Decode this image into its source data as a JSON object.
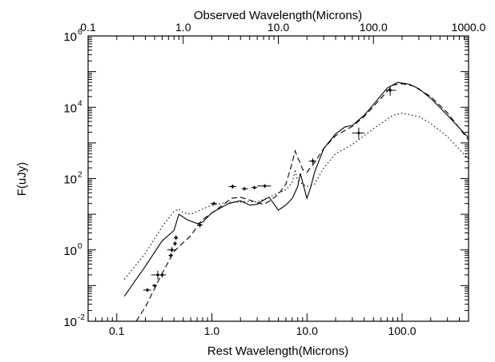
{
  "chart_data": {
    "type": "scatter",
    "title": "",
    "xlabel": "Rest Wavelength(Microns)",
    "x2label": "Observed Wavelength(Microns)",
    "ylabel": "F(uJy)",
    "xscale": "log",
    "yscale": "log",
    "xlim": [
      0.05,
      500
    ],
    "ylim": [
      0.01,
      1000000
    ],
    "x2lim": [
      0.1,
      1000
    ],
    "grid": false,
    "x_ticks": [
      {
        "value": 0.1,
        "label": "0.1"
      },
      {
        "value": 1,
        "label": "1.0"
      },
      {
        "value": 10,
        "label": "10.0"
      },
      {
        "value": 100,
        "label": "100.0"
      }
    ],
    "x2_ticks": [
      {
        "value": 0.1,
        "label": "0.1"
      },
      {
        "value": 1,
        "label": "1.0"
      },
      {
        "value": 10,
        "label": "10.0"
      },
      {
        "value": 100,
        "label": "100.0"
      },
      {
        "value": 1000,
        "label": "1000.0"
      }
    ],
    "y_ticks": [
      {
        "value": 0.01,
        "base": "10",
        "exp": "-2"
      },
      {
        "value": 1,
        "base": "10",
        "exp": "0"
      },
      {
        "value": 100,
        "base": "10",
        "exp": "2"
      },
      {
        "value": 10000,
        "base": "10",
        "exp": "4"
      },
      {
        "value": 1000000,
        "base": "10",
        "exp": "6"
      }
    ],
    "points": [
      {
        "x": 0.21,
        "y": 0.075,
        "xerr": [
          0.19,
          0.23
        ],
        "yerr": [
          0.066,
          0.085
        ]
      },
      {
        "x": 0.25,
        "y": 0.1,
        "xerr": [
          0.235,
          0.265
        ],
        "yerr": [
          0.09,
          0.11
        ]
      },
      {
        "x": 0.27,
        "y": 0.2,
        "xerr": [
          0.23,
          0.31
        ],
        "yerr": [
          0.15,
          0.26
        ]
      },
      {
        "x": 0.3,
        "y": 0.2,
        "xerr": [
          0.28,
          0.33
        ],
        "yerr": [
          0.17,
          0.23
        ]
      },
      {
        "x": 0.37,
        "y": 0.7,
        "xerr": [
          0.35,
          0.39
        ],
        "yerr": [
          0.6,
          0.8
        ]
      },
      {
        "x": 0.38,
        "y": 1.0,
        "xerr": [
          0.34,
          0.42
        ],
        "yerr": [
          0.85,
          1.2
        ]
      },
      {
        "x": 0.41,
        "y": 1.5,
        "xerr": [
          0.39,
          0.43
        ],
        "yerr": [
          1.3,
          1.75
        ]
      },
      {
        "x": 0.42,
        "y": 2.2,
        "xerr": [
          0.4,
          0.44
        ],
        "yerr": [
          1.9,
          2.6
        ]
      },
      {
        "x": 0.75,
        "y": 5.0,
        "xerr": [
          0.7,
          0.8
        ],
        "yerr": [
          4.2,
          5.9
        ]
      },
      {
        "x": 1.05,
        "y": 20,
        "xerr": [
          0.97,
          1.13
        ],
        "yerr": [
          17.5,
          22.5
        ]
      },
      {
        "x": 1.65,
        "y": 60,
        "xerr": [
          1.5,
          1.8
        ],
        "yerr": [
          52,
          68
        ]
      },
      {
        "x": 2.2,
        "y": 52,
        "xerr": [
          2.05,
          2.4
        ],
        "yerr": [
          46,
          58
        ]
      },
      {
        "x": 2.8,
        "y": 56,
        "xerr": [
          2.6,
          3.0
        ],
        "yerr": [
          50,
          62
        ]
      },
      {
        "x": 3.6,
        "y": 62,
        "xerr": [
          3.0,
          4.2
        ],
        "yerr": [
          55,
          69
        ]
      },
      {
        "x": 11.5,
        "y": 310,
        "xerr": [
          10.5,
          12.5
        ],
        "yerr": [
          260,
          370
        ]
      },
      {
        "x": 35,
        "y": 1900,
        "xerr": [
          30,
          40
        ],
        "yerr": [
          1300,
          2700
        ]
      },
      {
        "x": 75,
        "y": 30000,
        "xerr": [
          66,
          86
        ],
        "yerr": [
          21000,
          40000
        ]
      }
    ],
    "series": [
      {
        "style": "solid",
        "points": [
          [
            0.12,
            0.05
          ],
          [
            0.2,
            0.35
          ],
          [
            0.3,
            1.8
          ],
          [
            0.4,
            3.5
          ],
          [
            0.45,
            10
          ],
          [
            0.55,
            7
          ],
          [
            0.7,
            5.5
          ],
          [
            0.8,
            6
          ],
          [
            1.0,
            11
          ],
          [
            1.5,
            20
          ],
          [
            2.0,
            24
          ],
          [
            2.5,
            18
          ],
          [
            3.0,
            19
          ],
          [
            3.5,
            25
          ],
          [
            4.0,
            30
          ],
          [
            5.0,
            13
          ],
          [
            6.0,
            18
          ],
          [
            7.0,
            28
          ],
          [
            8.0,
            60
          ],
          [
            8.5,
            140
          ],
          [
            9.0,
            80
          ],
          [
            10.0,
            28
          ],
          [
            11.0,
            60
          ],
          [
            12.0,
            150
          ],
          [
            15.0,
            700
          ],
          [
            20.0,
            1800
          ],
          [
            25.0,
            2800
          ],
          [
            30.0,
            3100
          ],
          [
            40.0,
            6000
          ],
          [
            50.0,
            12000
          ],
          [
            70.0,
            35000
          ],
          [
            90.0,
            50000
          ],
          [
            120.0,
            44000
          ],
          [
            150.0,
            33000
          ],
          [
            200.0,
            18000
          ],
          [
            300.0,
            6000
          ],
          [
            500.0,
            1400
          ]
        ]
      },
      {
        "style": "dashed",
        "points": [
          [
            0.16,
            0.01
          ],
          [
            0.2,
            0.025
          ],
          [
            0.3,
            0.22
          ],
          [
            0.4,
            0.9
          ],
          [
            0.5,
            1.6
          ],
          [
            0.6,
            2.5
          ],
          [
            0.7,
            4.5
          ],
          [
            0.8,
            7
          ],
          [
            1.0,
            11
          ],
          [
            1.3,
            18
          ],
          [
            1.6,
            28
          ],
          [
            2.0,
            30
          ],
          [
            2.5,
            25
          ],
          [
            3.0,
            21
          ],
          [
            3.5,
            19
          ],
          [
            4.0,
            23
          ],
          [
            5.0,
            36
          ],
          [
            6.0,
            70
          ],
          [
            7.0,
            280
          ],
          [
            7.5,
            600
          ],
          [
            8.0,
            380
          ],
          [
            8.5,
            280
          ],
          [
            9.0,
            180
          ],
          [
            10.0,
            150
          ],
          [
            12.0,
            280
          ],
          [
            15.0,
            700
          ],
          [
            20.0,
            1600
          ],
          [
            30.0,
            2900
          ],
          [
            40.0,
            5500
          ],
          [
            60.0,
            18000
          ],
          [
            80.0,
            42000
          ],
          [
            100.0,
            46000
          ],
          [
            130.0,
            40000
          ],
          [
            200.0,
            20000
          ],
          [
            300.0,
            7000
          ],
          [
            500.0,
            1200
          ]
        ]
      },
      {
        "style": "dotted",
        "points": [
          [
            0.12,
            0.15
          ],
          [
            0.2,
            0.8
          ],
          [
            0.3,
            4.5
          ],
          [
            0.4,
            12
          ],
          [
            0.45,
            14
          ],
          [
            0.5,
            11
          ],
          [
            0.6,
            10
          ],
          [
            0.7,
            12
          ],
          [
            1.0,
            18
          ],
          [
            1.5,
            22
          ],
          [
            2.0,
            22
          ],
          [
            2.5,
            23
          ],
          [
            3.0,
            22
          ],
          [
            4.0,
            30
          ],
          [
            5.0,
            40
          ],
          [
            6.0,
            48
          ],
          [
            6.5,
            60
          ],
          [
            7.0,
            80
          ],
          [
            7.5,
            160
          ],
          [
            8.0,
            90
          ],
          [
            9.0,
            70
          ],
          [
            10.0,
            60
          ],
          [
            12.0,
            70
          ],
          [
            15.0,
            200
          ],
          [
            20.0,
            500
          ],
          [
            30.0,
            900
          ],
          [
            50.0,
            2500
          ],
          [
            80.0,
            6000
          ],
          [
            100.0,
            6800
          ],
          [
            150.0,
            5500
          ],
          [
            200.0,
            3500
          ],
          [
            300.0,
            1500
          ],
          [
            500.0,
            350
          ]
        ]
      }
    ]
  }
}
